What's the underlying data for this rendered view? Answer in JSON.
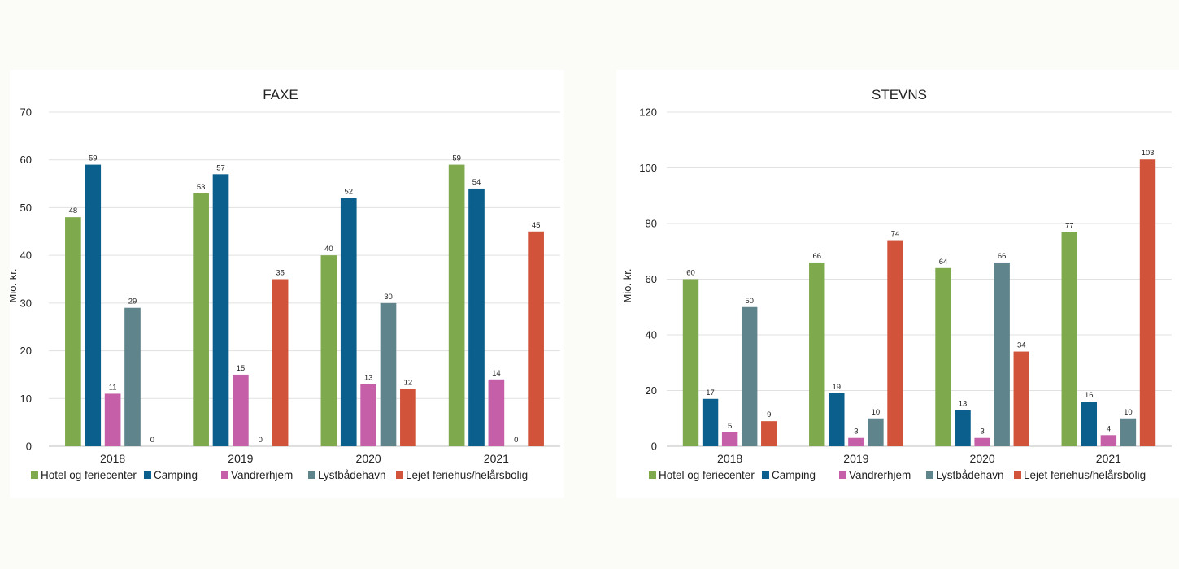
{
  "chart_data": [
    {
      "type": "bar",
      "title": "FAXE",
      "xlabel": "",
      "ylabel": "Mio. kr.",
      "ylim": [
        0,
        70
      ],
      "yticks": [
        0,
        10,
        20,
        30,
        40,
        50,
        60,
        70
      ],
      "grid": true,
      "legend": "bottom",
      "categories": [
        "2018",
        "2019",
        "2020",
        "2021"
      ],
      "series": [
        {
          "name": "Hotel og feriecenter",
          "color": "#7ea94c",
          "values": [
            48,
            53,
            40,
            59
          ]
        },
        {
          "name": "Camping",
          "color": "#0b5f8c",
          "values": [
            59,
            57,
            52,
            54
          ]
        },
        {
          "name": "Vandrerhjem",
          "color": "#c560a8",
          "values": [
            11,
            15,
            13,
            14
          ]
        },
        {
          "name": "Lystbådehavn",
          "color": "#5f848c",
          "values": [
            29,
            0,
            30,
            0
          ]
        },
        {
          "name": "Lejet feriehus/helårsbolig",
          "color": "#d0533a",
          "values": [
            0,
            35,
            12,
            45
          ]
        }
      ]
    },
    {
      "type": "bar",
      "title": "STEVNS",
      "xlabel": "",
      "ylabel": "Mio. kr.",
      "ylim": [
        0,
        120
      ],
      "yticks": [
        0,
        20,
        40,
        60,
        80,
        100,
        120
      ],
      "grid": true,
      "legend": "bottom",
      "categories": [
        "2018",
        "2019",
        "2020",
        "2021"
      ],
      "series": [
        {
          "name": "Hotel og feriecenter",
          "color": "#7ea94c",
          "values": [
            60,
            66,
            64,
            77
          ]
        },
        {
          "name": "Camping",
          "color": "#0b5f8c",
          "values": [
            17,
            19,
            13,
            16
          ]
        },
        {
          "name": "Vandrerhjem",
          "color": "#c560a8",
          "values": [
            5,
            3,
            3,
            4
          ]
        },
        {
          "name": "Lystbådehavn",
          "color": "#5f848c",
          "values": [
            50,
            10,
            66,
            10
          ]
        },
        {
          "name": "Lejet feriehus/helårsbolig",
          "color": "#d0533a",
          "values": [
            9,
            74,
            34,
            103
          ]
        }
      ]
    }
  ]
}
